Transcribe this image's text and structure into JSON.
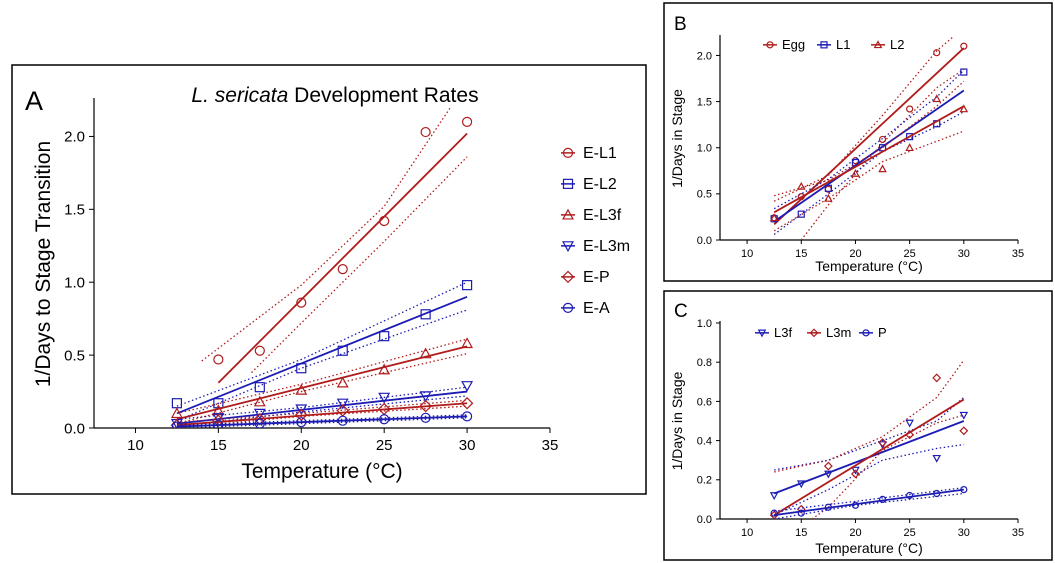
{
  "colors": {
    "red": "#b01c1c",
    "blue": "#1c1cb4"
  },
  "chart_data": [
    {
      "panel": "A",
      "type": "scatter",
      "title_italic": "L. sericata",
      "title_rest": " Development Rates",
      "xlabel": "Temperature (°C)",
      "ylabel": "1/Days to Stage Transition",
      "xlim": [
        7.5,
        35
      ],
      "ylim": [
        0,
        2.25
      ],
      "xticks": [
        10,
        15,
        20,
        25,
        30,
        35
      ],
      "yticks": [
        0.0,
        0.5,
        1.0,
        1.5,
        2.0
      ],
      "ytick_format": 1,
      "legend_position": "right",
      "series": [
        {
          "name": "E-L1",
          "color": "red",
          "marker": "circle",
          "x": [
            15,
            17.5,
            20,
            22.5,
            25,
            27.5,
            30
          ],
          "y": [
            0.47,
            0.53,
            0.86,
            1.09,
            1.42,
            2.03,
            2.1
          ],
          "fit": [
            [
              15,
              0.31
            ],
            [
              30,
              2.02
            ]
          ],
          "ci_upper": [
            [
              14,
              0.46
            ],
            [
              20,
              0.98
            ],
            [
              25,
              1.52
            ],
            [
              29,
              2.2
            ]
          ],
          "ci_lower": [
            [
              17,
              0.38
            ],
            [
              20,
              0.72
            ],
            [
              25,
              1.28
            ],
            [
              30,
              1.86
            ]
          ]
        },
        {
          "name": "E-L2",
          "color": "blue",
          "marker": "square",
          "x": [
            12.5,
            15,
            17.5,
            20,
            22.5,
            25,
            27.5,
            30
          ],
          "y": [
            0.17,
            0.17,
            0.28,
            0.41,
            0.53,
            0.63,
            0.78,
            0.98
          ],
          "fit": [
            [
              12.5,
              0.1
            ],
            [
              30,
              0.9
            ]
          ],
          "ci_upper": [
            [
              12.5,
              0.15
            ],
            [
              20,
              0.47
            ],
            [
              30,
              1.0
            ]
          ],
          "ci_lower": [
            [
              12.5,
              0.05
            ],
            [
              20,
              0.41
            ],
            [
              30,
              0.81
            ]
          ]
        },
        {
          "name": "E-L3f",
          "color": "red",
          "marker": "triangle-up",
          "x": [
            12.5,
            15,
            17.5,
            20,
            22.5,
            25,
            27.5,
            30
          ],
          "y": [
            0.1,
            0.12,
            0.18,
            0.26,
            0.31,
            0.4,
            0.51,
            0.58
          ],
          "fit": [
            [
              12.5,
              0.06
            ],
            [
              30,
              0.56
            ]
          ],
          "ci_upper": [
            [
              12.5,
              0.1
            ],
            [
              20,
              0.3
            ],
            [
              30,
              0.61
            ]
          ],
          "ci_lower": [
            [
              12.5,
              0.03
            ],
            [
              20,
              0.25
            ],
            [
              30,
              0.51
            ]
          ]
        },
        {
          "name": "E-L3m",
          "color": "blue",
          "marker": "triangle-down",
          "x": [
            12.5,
            15,
            17.5,
            20,
            22.5,
            25,
            27.5,
            30
          ],
          "y": [
            0.03,
            0.07,
            0.1,
            0.13,
            0.17,
            0.21,
            0.22,
            0.29
          ],
          "fit": [
            [
              12.5,
              0.03
            ],
            [
              30,
              0.25
            ]
          ],
          "ci_upper": [
            [
              12.5,
              0.06
            ],
            [
              20,
              0.14
            ],
            [
              30,
              0.28
            ]
          ],
          "ci_lower": [
            [
              12.5,
              0.01
            ],
            [
              20,
              0.11
            ],
            [
              30,
              0.22
            ]
          ]
        },
        {
          "name": "E-P",
          "color": "red",
          "marker": "diamond",
          "x": [
            12.5,
            15,
            17.5,
            20,
            22.5,
            25,
            27.5,
            30
          ],
          "y": [
            0.02,
            0.05,
            0.06,
            0.09,
            0.12,
            0.13,
            0.15,
            0.17
          ],
          "fit": [
            [
              12.5,
              0.02
            ],
            [
              30,
              0.17
            ]
          ],
          "ci_upper": [
            [
              12.5,
              0.04
            ],
            [
              20,
              0.1
            ],
            [
              30,
              0.19
            ]
          ],
          "ci_lower": [
            [
              12.5,
              0.0
            ],
            [
              20,
              0.08
            ],
            [
              30,
              0.15
            ]
          ]
        },
        {
          "name": "E-A",
          "color": "blue",
          "marker": "circle",
          "x": [
            12.5,
            15,
            17.5,
            20,
            22.5,
            25,
            27.5,
            30
          ],
          "y": [
            0.01,
            0.02,
            0.03,
            0.04,
            0.05,
            0.06,
            0.07,
            0.08
          ],
          "fit": [
            [
              12.5,
              0.01
            ],
            [
              30,
              0.08
            ]
          ],
          "ci_upper": [
            [
              12.5,
              0.02
            ],
            [
              30,
              0.09
            ]
          ],
          "ci_lower": [
            [
              12.5,
              0.0
            ],
            [
              30,
              0.07
            ]
          ]
        }
      ]
    },
    {
      "panel": "B",
      "type": "scatter",
      "xlabel": "Temperature (°C)",
      "ylabel": "1/Days in Stage",
      "xlim": [
        7.5,
        35
      ],
      "ylim": [
        0,
        2.2
      ],
      "xticks": [
        10,
        15,
        20,
        25,
        30,
        35
      ],
      "yticks": [
        0.0,
        0.5,
        1.0,
        1.5,
        2.0
      ],
      "ytick_format": 1,
      "legend_position": "top",
      "series": [
        {
          "name": "Egg",
          "color": "red",
          "marker": "circle",
          "x": [
            12.5,
            15,
            17.5,
            20,
            22.5,
            25,
            27.5,
            30
          ],
          "y": [
            0.24,
            0.47,
            0.55,
            0.86,
            1.09,
            1.42,
            2.03,
            2.1
          ],
          "fit": [
            [
              12.5,
              0.17
            ],
            [
              30,
              2.08
            ]
          ],
          "ci_upper": [
            [
              12.5,
              0.42
            ],
            [
              17.5,
              0.7
            ],
            [
              22.5,
              1.35
            ],
            [
              27.5,
              2.05
            ],
            [
              29,
              2.2
            ]
          ],
          "ci_lower": [
            [
              15,
              0.0
            ],
            [
              17.5,
              0.38
            ],
            [
              22.5,
              1.05
            ],
            [
              27.5,
              1.65
            ],
            [
              30,
              1.85
            ]
          ]
        },
        {
          "name": "L1",
          "color": "blue",
          "marker": "square",
          "x": [
            12.5,
            15,
            17.5,
            20,
            22.5,
            25,
            27.5,
            30
          ],
          "y": [
            0.23,
            0.28,
            0.56,
            0.84,
            1.0,
            1.12,
            1.26,
            1.82
          ],
          "fit": [
            [
              12.5,
              0.2
            ],
            [
              30,
              1.62
            ]
          ],
          "ci_upper": [
            [
              12.5,
              0.34
            ],
            [
              17.5,
              0.66
            ],
            [
              22.5,
              1.1
            ],
            [
              27.5,
              1.55
            ],
            [
              30,
              1.84
            ]
          ],
          "ci_lower": [
            [
              12.5,
              0.06
            ],
            [
              17.5,
              0.5
            ],
            [
              22.5,
              0.96
            ],
            [
              27.5,
              1.23
            ],
            [
              30,
              1.39
            ]
          ]
        },
        {
          "name": "L2",
          "color": "red",
          "marker": "triangle-up",
          "x": [
            12.5,
            15,
            17.5,
            20,
            22.5,
            25,
            27.5,
            30
          ],
          "y": [
            0.24,
            0.58,
            0.45,
            0.72,
            0.77,
            1.0,
            1.53,
            1.42
          ],
          "fit": [
            [
              12.5,
              0.3
            ],
            [
              30,
              1.45
            ]
          ],
          "ci_upper": [
            [
              12.5,
              0.48
            ],
            [
              17.5,
              0.65
            ],
            [
              22.5,
              1.0
            ],
            [
              27.5,
              1.45
            ],
            [
              30,
              1.72
            ]
          ],
          "ci_lower": [
            [
              12.5,
              0.1
            ],
            [
              17.5,
              0.45
            ],
            [
              22.5,
              0.85
            ],
            [
              27.5,
              1.07
            ],
            [
              30,
              1.18
            ]
          ]
        }
      ]
    },
    {
      "panel": "C",
      "type": "scatter",
      "xlabel": "Temperature (°C)",
      "ylabel": "1/Days in Stage",
      "xlim": [
        7.5,
        35
      ],
      "ylim": [
        0,
        1.0
      ],
      "xticks": [
        10,
        15,
        20,
        25,
        30,
        35
      ],
      "yticks": [
        0.0,
        0.2,
        0.4,
        0.6,
        0.8,
        1.0
      ],
      "ytick_format": 1,
      "legend_position": "top",
      "series": [
        {
          "name": "L3f",
          "color": "blue",
          "marker": "triangle-down",
          "x": [
            12.5,
            15,
            17.5,
            20,
            22.5,
            25,
            27.5,
            30
          ],
          "y": [
            0.12,
            0.18,
            0.23,
            0.25,
            0.38,
            0.49,
            0.31,
            0.53
          ],
          "fit": [
            [
              12.5,
              0.13
            ],
            [
              30,
              0.5
            ]
          ],
          "ci_upper": [
            [
              12.5,
              0.25
            ],
            [
              17.5,
              0.3
            ],
            [
              22.5,
              0.4
            ],
            [
              27.5,
              0.5
            ],
            [
              30,
              0.62
            ]
          ],
          "ci_lower": [
            [
              12.5,
              0.02
            ],
            [
              17.5,
              0.15
            ],
            [
              22.5,
              0.3
            ],
            [
              27.5,
              0.36
            ],
            [
              30,
              0.38
            ]
          ]
        },
        {
          "name": "L3m",
          "color": "red",
          "marker": "diamond",
          "x": [
            12.5,
            15,
            17.5,
            20,
            22.5,
            25,
            27.5,
            30
          ],
          "y": [
            0.02,
            0.05,
            0.27,
            0.23,
            0.39,
            0.43,
            0.72,
            0.45
          ],
          "fit": [
            [
              12.5,
              0.02
            ],
            [
              30,
              0.61
            ]
          ],
          "ci_upper": [
            [
              12.5,
              0.24
            ],
            [
              17.5,
              0.3
            ],
            [
              22.5,
              0.42
            ],
            [
              27.5,
              0.62
            ],
            [
              30,
              0.81
            ]
          ],
          "ci_lower": [
            [
              16,
              0.0
            ],
            [
              17.5,
              0.06
            ],
            [
              22.5,
              0.35
            ],
            [
              27.5,
              0.49
            ],
            [
              30,
              0.53
            ]
          ]
        },
        {
          "name": "P",
          "color": "blue",
          "marker": "circle",
          "x": [
            12.5,
            15,
            17.5,
            20,
            22.5,
            25,
            27.5,
            30
          ],
          "y": [
            0.03,
            0.03,
            0.06,
            0.07,
            0.1,
            0.12,
            0.13,
            0.15
          ],
          "fit": [
            [
              12.5,
              0.02
            ],
            [
              30,
              0.15
            ]
          ],
          "ci_upper": [
            [
              12.5,
              0.04
            ],
            [
              20,
              0.09
            ],
            [
              30,
              0.16
            ]
          ],
          "ci_lower": [
            [
              12.5,
              0.0
            ],
            [
              20,
              0.07
            ],
            [
              30,
              0.13
            ]
          ]
        }
      ]
    }
  ]
}
